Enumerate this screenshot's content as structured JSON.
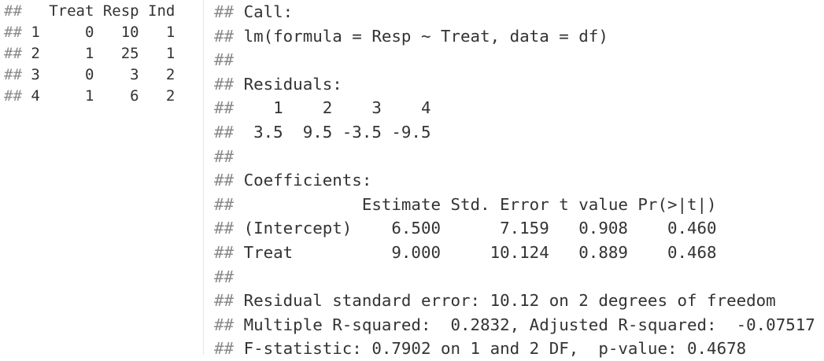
{
  "left_output": {
    "lines": [
      {
        "prefix": "##",
        "text": "   Treat Resp Ind"
      },
      {
        "prefix": "##",
        "text": " 1     0   10   1"
      },
      {
        "prefix": "##",
        "text": " 2     1   25   1"
      },
      {
        "prefix": "##",
        "text": " 3     0    3   2"
      },
      {
        "prefix": "##",
        "text": " 4     1    6   2"
      }
    ]
  },
  "right_output": {
    "lines": [
      {
        "prefix": "##",
        "text": " Call:"
      },
      {
        "prefix": "##",
        "text": " lm(formula = Resp ~ Treat, data = df)"
      },
      {
        "prefix": "##",
        "text": ""
      },
      {
        "prefix": "##",
        "text": " Residuals:"
      },
      {
        "prefix": "##",
        "text": "    1    2    3    4"
      },
      {
        "prefix": "##",
        "text": "  3.5  9.5 -3.5 -9.5"
      },
      {
        "prefix": "##",
        "text": ""
      },
      {
        "prefix": "##",
        "text": " Coefficients:"
      },
      {
        "prefix": "##",
        "text": "             Estimate Std. Error t value Pr(>|t|)"
      },
      {
        "prefix": "##",
        "text": " (Intercept)    6.500      7.159   0.908    0.460"
      },
      {
        "prefix": "##",
        "text": " Treat          9.000     10.124   0.889    0.468"
      },
      {
        "prefix": "##",
        "text": ""
      },
      {
        "prefix": "##",
        "text": " Residual standard error: 10.12 on 2 degrees of freedom"
      },
      {
        "prefix": "##",
        "text": " Multiple R-squared:  0.2832, Adjusted R-squared:  -0.07517"
      },
      {
        "prefix": "##",
        "text": " F-statistic: 0.7902 on 1 and 2 DF,  p-value: 0.4678"
      }
    ]
  }
}
